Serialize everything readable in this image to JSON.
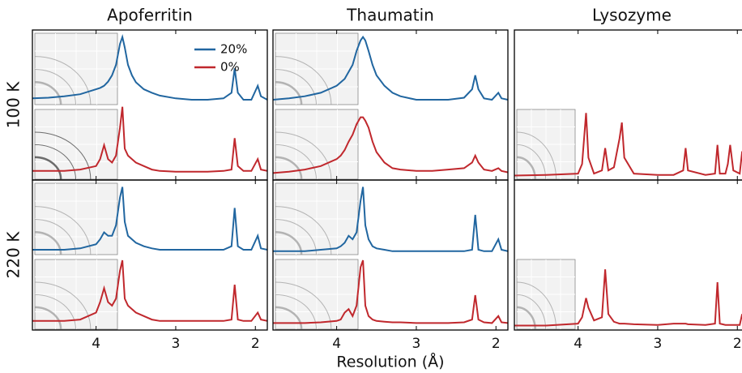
{
  "chart_data": [
    {
      "type": "line",
      "title": "Apoferritin",
      "row_label": "100 K",
      "legend": "upper right",
      "x": [
        4.8,
        4.6,
        4.4,
        4.2,
        4.0,
        3.95,
        3.9,
        3.85,
        3.8,
        3.75,
        3.7,
        3.67,
        3.64,
        3.6,
        3.55,
        3.5,
        3.4,
        3.3,
        3.2,
        3.0,
        2.8,
        2.6,
        2.4,
        2.3,
        2.26,
        2.22,
        2.15,
        2.05,
        1.97,
        1.93,
        1.85
      ],
      "xlim": [
        4.8,
        1.85
      ],
      "xticks": [
        4,
        3,
        2
      ],
      "series": [
        {
          "name": "20%",
          "color": "#2166a0",
          "ylim": [
            -1.05,
            1.1
          ],
          "values": [
            0.12,
            0.13,
            0.15,
            0.18,
            0.25,
            0.27,
            0.3,
            0.36,
            0.45,
            0.6,
            0.9,
            1.0,
            0.85,
            0.6,
            0.45,
            0.35,
            0.25,
            0.2,
            0.16,
            0.12,
            0.1,
            0.1,
            0.12,
            0.2,
            0.55,
            0.2,
            0.1,
            0.1,
            0.3,
            0.15,
            0.1
          ]
        },
        {
          "name": "0%",
          "color": "#c0282d",
          "ylim": [
            -0.05,
            2.1
          ],
          "values": [
            0.08,
            0.08,
            0.08,
            0.1,
            0.15,
            0.25,
            0.45,
            0.25,
            0.2,
            0.3,
            0.7,
            1.0,
            0.4,
            0.3,
            0.25,
            0.2,
            0.15,
            0.1,
            0.08,
            0.07,
            0.07,
            0.07,
            0.08,
            0.1,
            0.55,
            0.15,
            0.08,
            0.08,
            0.25,
            0.1,
            0.08
          ]
        }
      ]
    },
    {
      "type": "line",
      "title": "Thaumatin",
      "x": [
        4.8,
        4.6,
        4.4,
        4.2,
        4.0,
        3.95,
        3.9,
        3.85,
        3.8,
        3.75,
        3.7,
        3.67,
        3.64,
        3.6,
        3.55,
        3.5,
        3.4,
        3.3,
        3.2,
        3.0,
        2.8,
        2.6,
        2.4,
        2.3,
        2.26,
        2.22,
        2.15,
        2.05,
        1.97,
        1.93,
        1.85
      ],
      "xlim": [
        4.8,
        1.85
      ],
      "xticks": [
        4,
        3,
        2
      ],
      "series": [
        {
          "color": "#2166a0",
          "ylim": [
            -1.05,
            1.1
          ],
          "values": [
            0.1,
            0.12,
            0.15,
            0.2,
            0.3,
            0.35,
            0.4,
            0.5,
            0.6,
            0.8,
            0.95,
            1.0,
            0.95,
            0.8,
            0.6,
            0.45,
            0.3,
            0.2,
            0.15,
            0.1,
            0.1,
            0.1,
            0.13,
            0.25,
            0.45,
            0.25,
            0.12,
            0.1,
            0.2,
            0.12,
            0.1
          ]
        },
        {
          "color": "#c0282d",
          "ylim": [
            -0.05,
            2.1
          ],
          "values": [
            0.05,
            0.07,
            0.1,
            0.15,
            0.25,
            0.3,
            0.38,
            0.5,
            0.6,
            0.75,
            0.85,
            0.85,
            0.8,
            0.7,
            0.5,
            0.35,
            0.2,
            0.12,
            0.1,
            0.08,
            0.08,
            0.1,
            0.12,
            0.2,
            0.3,
            0.2,
            0.1,
            0.08,
            0.12,
            0.08,
            0.06
          ]
        }
      ]
    },
    {
      "type": "line",
      "title": "Lysozyme",
      "x": [
        4.8,
        4.4,
        4.0,
        3.95,
        3.9,
        3.87,
        3.8,
        3.7,
        3.66,
        3.62,
        3.55,
        3.48,
        3.45,
        3.42,
        3.3,
        3.0,
        2.8,
        2.68,
        2.65,
        2.62,
        2.4,
        2.28,
        2.25,
        2.22,
        2.15,
        2.12,
        2.09,
        2.05,
        1.97,
        1.94,
        1.91,
        1.85
      ],
      "xlim": [
        4.8,
        1.85
      ],
      "xticks": [
        4,
        3,
        2
      ],
      "series": [
        {
          "color": "#c0282d",
          "ylim": [
            -0.05,
            2.3
          ],
          "values": [
            0.02,
            0.03,
            0.05,
            0.2,
            1.0,
            0.3,
            0.05,
            0.1,
            0.45,
            0.1,
            0.15,
            0.6,
            0.85,
            0.3,
            0.05,
            0.03,
            0.03,
            0.1,
            0.45,
            0.1,
            0.03,
            0.05,
            0.5,
            0.05,
            0.05,
            0.2,
            0.5,
            0.1,
            0.05,
            0.4,
            0.1,
            0.05
          ]
        }
      ]
    },
    {
      "type": "line",
      "row_label": "220 K",
      "x": [
        4.8,
        4.6,
        4.4,
        4.2,
        4.0,
        3.95,
        3.9,
        3.85,
        3.8,
        3.75,
        3.7,
        3.67,
        3.64,
        3.6,
        3.55,
        3.5,
        3.4,
        3.3,
        3.2,
        3.0,
        2.8,
        2.6,
        2.4,
        2.3,
        2.26,
        2.22,
        2.15,
        2.05,
        1.97,
        1.93,
        1.85
      ],
      "xlim": [
        4.8,
        1.85
      ],
      "xticks": [
        4,
        3,
        2
      ],
      "series": [
        {
          "color": "#2166a0",
          "ylim": [
            -1.05,
            1.1
          ],
          "values": [
            0.1,
            0.1,
            0.1,
            0.12,
            0.18,
            0.25,
            0.35,
            0.3,
            0.3,
            0.45,
            0.85,
            1.0,
            0.5,
            0.3,
            0.25,
            0.2,
            0.15,
            0.12,
            0.1,
            0.1,
            0.1,
            0.1,
            0.1,
            0.15,
            0.7,
            0.15,
            0.1,
            0.1,
            0.3,
            0.12,
            0.1
          ]
        },
        {
          "color": "#c0282d",
          "ylim": [
            -0.05,
            2.1
          ],
          "values": [
            0.08,
            0.08,
            0.08,
            0.1,
            0.2,
            0.35,
            0.55,
            0.35,
            0.3,
            0.4,
            0.8,
            0.95,
            0.4,
            0.3,
            0.25,
            0.2,
            0.15,
            0.1,
            0.08,
            0.08,
            0.08,
            0.08,
            0.08,
            0.1,
            0.6,
            0.1,
            0.08,
            0.08,
            0.2,
            0.1,
            0.08
          ]
        }
      ]
    },
    {
      "type": "line",
      "xlabel": "Resolution (Å)",
      "x": [
        4.8,
        4.6,
        4.4,
        4.2,
        4.0,
        3.95,
        3.9,
        3.85,
        3.8,
        3.75,
        3.7,
        3.67,
        3.64,
        3.6,
        3.55,
        3.5,
        3.4,
        3.3,
        3.2,
        3.0,
        2.8,
        2.6,
        2.4,
        2.3,
        2.26,
        2.22,
        2.15,
        2.05,
        1.97,
        1.93,
        1.85
      ],
      "xlim": [
        4.8,
        1.85
      ],
      "xticks": [
        4,
        3,
        2
      ],
      "series": [
        {
          "color": "#2166a0",
          "ylim": [
            -1.05,
            1.1
          ],
          "values": [
            0.08,
            0.08,
            0.08,
            0.1,
            0.12,
            0.15,
            0.2,
            0.3,
            0.25,
            0.35,
            0.8,
            1.0,
            0.45,
            0.25,
            0.15,
            0.12,
            0.1,
            0.08,
            0.08,
            0.08,
            0.08,
            0.08,
            0.08,
            0.1,
            0.6,
            0.1,
            0.08,
            0.08,
            0.25,
            0.1,
            0.08
          ]
        },
        {
          "color": "#c0282d",
          "ylim": [
            -0.05,
            2.1
          ],
          "values": [
            0.05,
            0.05,
            0.05,
            0.06,
            0.08,
            0.1,
            0.2,
            0.25,
            0.15,
            0.3,
            0.85,
            0.95,
            0.3,
            0.15,
            0.1,
            0.08,
            0.07,
            0.06,
            0.06,
            0.05,
            0.05,
            0.05,
            0.06,
            0.1,
            0.45,
            0.1,
            0.06,
            0.05,
            0.15,
            0.06,
            0.05
          ]
        }
      ]
    },
    {
      "type": "line",
      "x": [
        4.8,
        4.4,
        4.0,
        3.95,
        3.9,
        3.87,
        3.8,
        3.7,
        3.66,
        3.62,
        3.55,
        3.48,
        3.45,
        3.42,
        3.3,
        3.0,
        2.8,
        2.68,
        2.65,
        2.62,
        2.4,
        2.28,
        2.25,
        2.22,
        2.15,
        2.12,
        2.09,
        2.05,
        1.97,
        1.94,
        1.91,
        1.85
      ],
      "xlim": [
        4.8,
        1.85
      ],
      "xticks": [
        4,
        3,
        2
      ],
      "series": [
        {
          "color": "#c0282d",
          "ylim": [
            -0.05,
            2.3
          ],
          "values": [
            0.02,
            0.02,
            0.05,
            0.15,
            0.45,
            0.3,
            0.1,
            0.15,
            0.9,
            0.2,
            0.08,
            0.05,
            0.05,
            0.05,
            0.04,
            0.03,
            0.05,
            0.05,
            0.05,
            0.04,
            0.03,
            0.05,
            0.7,
            0.05,
            0.03,
            0.03,
            0.03,
            0.03,
            0.03,
            0.2,
            0.05,
            0.03
          ]
        }
      ]
    }
  ]
}
